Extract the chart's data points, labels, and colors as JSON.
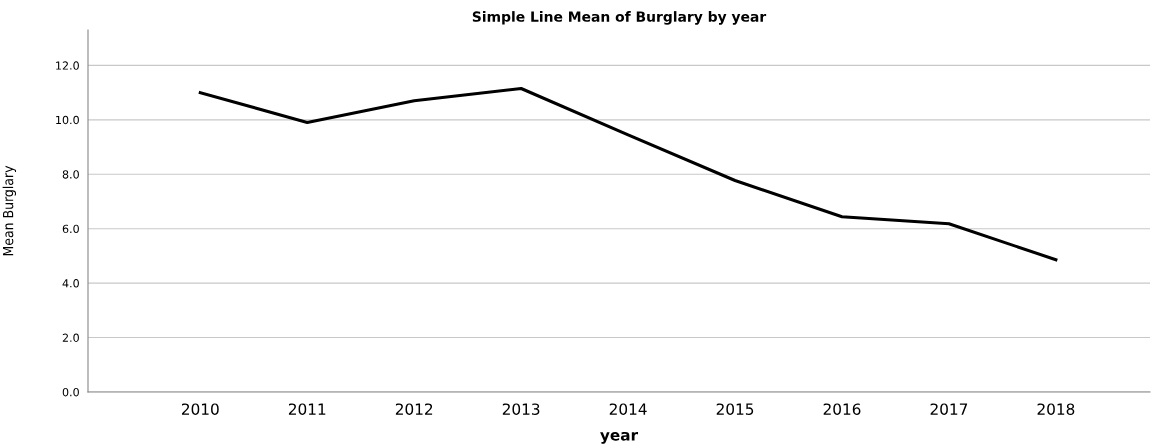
{
  "chart_data": {
    "type": "line",
    "title": "Simple Line Mean of Burglary by year",
    "xlabel": "year",
    "ylabel": "Mean Burglary",
    "categories": [
      "2010",
      "2011",
      "2012",
      "2013",
      "2014",
      "2015",
      "2016",
      "2017",
      "2018"
    ],
    "series": [
      {
        "color": "#000000",
        "values": [
          11.0,
          9.9,
          10.7,
          11.15,
          9.45,
          7.77,
          6.44,
          6.18,
          4.86
        ]
      }
    ],
    "ylim": [
      0,
      13.3
    ],
    "yticks": [
      {
        "value": 0,
        "label": "0.0"
      },
      {
        "value": 2,
        "label": "2.0"
      },
      {
        "value": 4,
        "label": "4.0"
      },
      {
        "value": 6,
        "label": "6.0"
      },
      {
        "value": 8,
        "label": "8.0"
      },
      {
        "value": 10,
        "label": "10.0"
      },
      {
        "value": 12,
        "label": "12.0"
      }
    ],
    "grid": "y",
    "marker": "none",
    "line_style": "solid"
  }
}
